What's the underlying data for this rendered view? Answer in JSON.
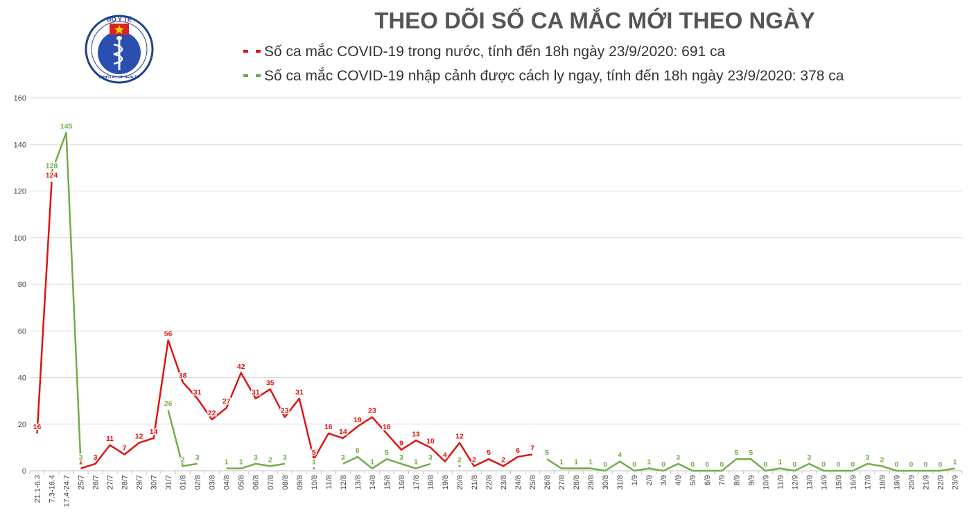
{
  "logo": {
    "top_text": "BỘ Y TẾ",
    "bottom_text": "MINISTRY OF HEALTH"
  },
  "chart_data": {
    "type": "line",
    "title": "THEO DÕI SỐ CA MẮC MỚI THEO NGÀY",
    "legend_position": "top",
    "grid": true,
    "ylim": [
      0,
      160
    ],
    "yticks": [
      0,
      20,
      40,
      60,
      80,
      100,
      120,
      140,
      160
    ],
    "categories": [
      "21.1-6.3",
      "7.3-16.4",
      "17.4-24.7",
      "25/7",
      "26/7",
      "27/7",
      "28/7",
      "29/7",
      "30/7",
      "31/7",
      "01/8",
      "02/8",
      "03/8",
      "04/8",
      "05/8",
      "06/8",
      "07/8",
      "08/8",
      "09/8",
      "10/8",
      "11/8",
      "12/8",
      "13/8",
      "14/8",
      "15/8",
      "16/8",
      "17/8",
      "18/8",
      "19/8",
      "20/8",
      "21/8",
      "22/8",
      "23/8",
      "24/8",
      "25/8",
      "26/8",
      "27/8",
      "28/8",
      "29/8",
      "30/8",
      "31/8",
      "1/9",
      "2/9",
      "3/9",
      "4/9",
      "5/9",
      "6/9",
      "7/9",
      "8/9",
      "9/9",
      "10/9",
      "11/9",
      "12/9",
      "13/9",
      "14/9",
      "15/9",
      "16/9",
      "17/9",
      "18/9",
      "19/9",
      "20/9",
      "21/9",
      "22/9",
      "23/9"
    ],
    "series": [
      {
        "name": "Số ca mắc COVID-19 trong nước, tính đến 18h ngày 23/9/2020: 691 ca",
        "color": "#e0140f",
        "values": [
          16,
          124,
          null,
          1,
          3,
          11,
          7,
          12,
          14,
          56,
          38,
          31,
          22,
          27,
          42,
          31,
          35,
          23,
          31,
          5,
          16,
          14,
          19,
          23,
          16,
          9,
          13,
          10,
          4,
          12,
          2,
          5,
          2,
          6,
          7,
          null,
          1,
          1,
          1,
          null,
          null,
          null,
          1,
          null,
          null,
          null,
          null,
          null,
          null,
          null,
          null,
          null,
          null,
          null,
          null,
          null,
          null,
          null,
          null,
          null,
          null,
          null,
          null,
          null
        ]
      },
      {
        "name": "Số ca mắc COVID-19 nhập cảnh được cách ly ngay, tính đến 18h ngày 23/9/2020: 378 ca",
        "color": "#70ad47",
        "values": [
          null,
          128,
          145,
          3,
          null,
          null,
          null,
          null,
          null,
          26,
          2,
          3,
          null,
          1,
          1,
          3,
          2,
          3,
          null,
          1,
          null,
          3,
          6,
          1,
          5,
          3,
          1,
          3,
          null,
          2,
          null,
          null,
          null,
          null,
          null,
          5,
          1,
          1,
          1,
          0,
          4,
          0,
          1,
          0,
          3,
          0,
          0,
          0,
          5,
          5,
          0,
          1,
          0,
          3,
          0,
          0,
          0,
          3,
          2,
          0,
          0,
          0,
          0,
          1
        ]
      }
    ]
  }
}
